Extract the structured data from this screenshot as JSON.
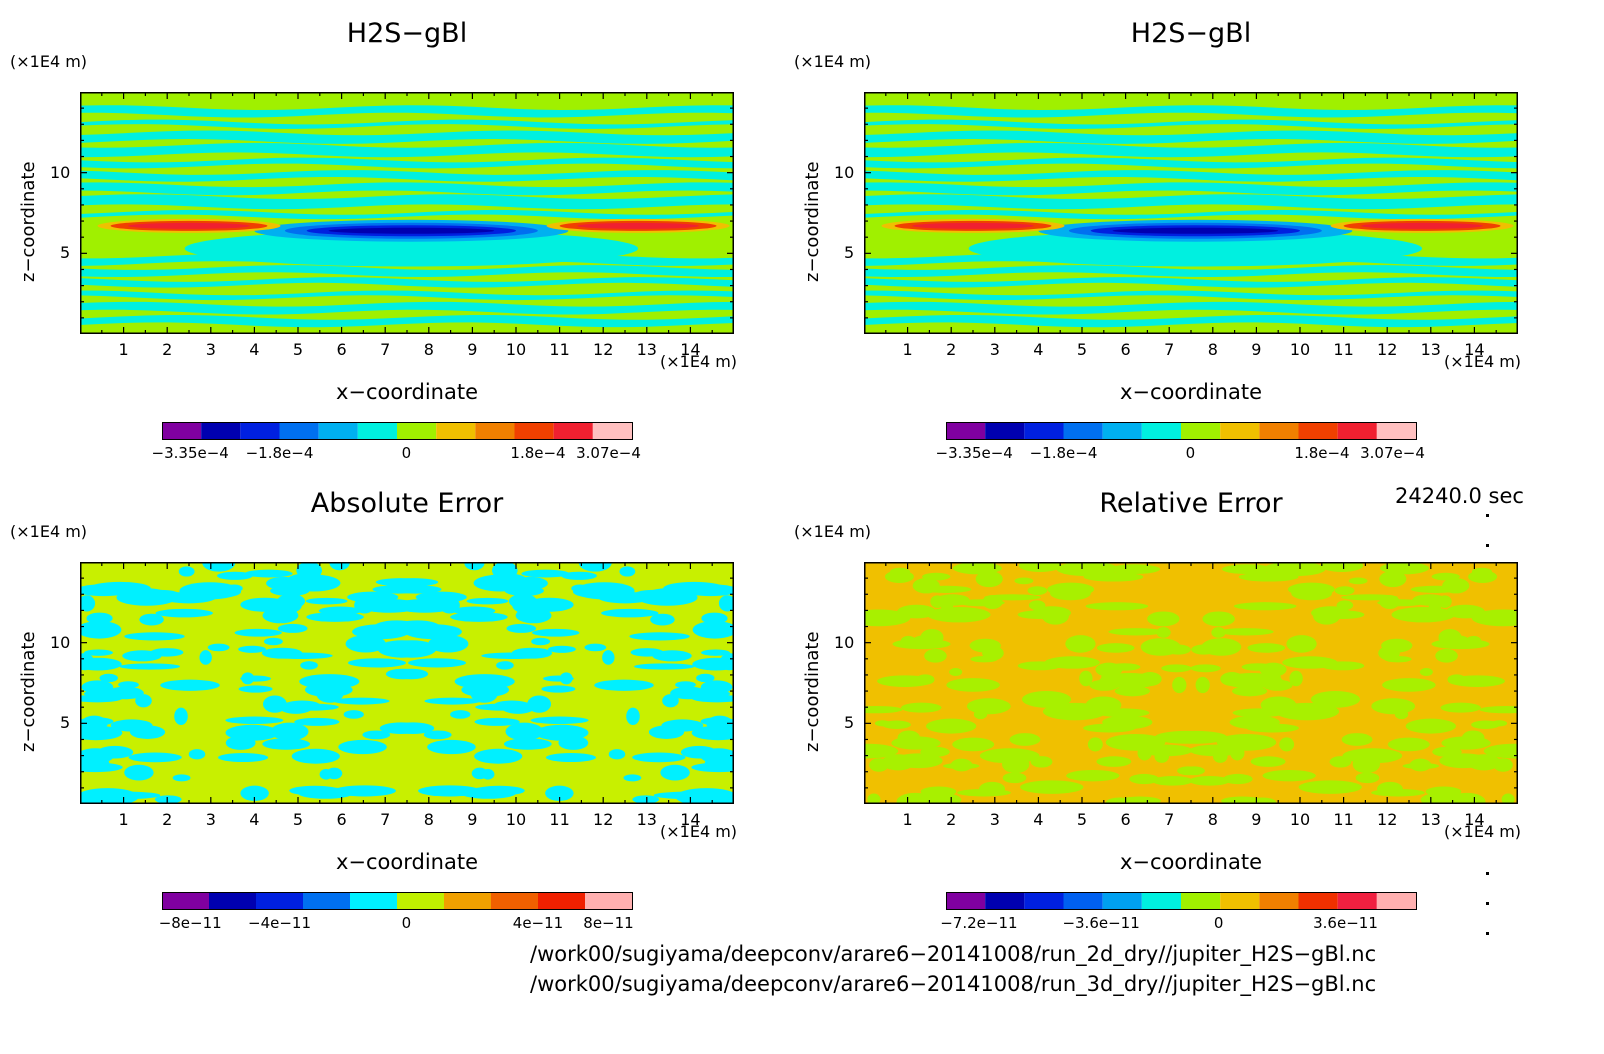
{
  "panels": [
    {
      "title": "H2S−gBl",
      "z_unit": "(×1E4 m)",
      "x_unit": "(×1E4 m)",
      "xlabel": "x−coordinate",
      "ylabel": "z−coordinate",
      "colorbar": {
        "labels": [
          "−3.35e−4",
          "−1.8e−4",
          "0",
          "1.8e−4",
          "3.07e−4"
        ],
        "colors": [
          "#8000a0",
          "#0000b0",
          "#0020e0",
          "#0070f0",
          "#00b0f0",
          "#00f0e0",
          "#a0f000",
          "#f0c000",
          "#f08000",
          "#f04000",
          "#f02030",
          "#ffc0c0"
        ]
      },
      "style": "field"
    },
    {
      "title": "H2S−gBl",
      "z_unit": "(×1E4 m)",
      "x_unit": "(×1E4 m)",
      "xlabel": "x−coordinate",
      "ylabel": "z−coordinate",
      "colorbar": {
        "labels": [
          "−3.35e−4",
          "−1.8e−4",
          "0",
          "1.8e−4",
          "3.07e−4"
        ],
        "colors": [
          "#8000a0",
          "#0000b0",
          "#0020e0",
          "#0070f0",
          "#00b0f0",
          "#00f0e0",
          "#a0f000",
          "#f0c000",
          "#f08000",
          "#f04000",
          "#f02030",
          "#ffc0c0"
        ]
      },
      "style": "field"
    },
    {
      "title": "Absolute Error",
      "z_unit": "(×1E4 m)",
      "x_unit": "(×1E4 m)",
      "xlabel": "x−coordinate",
      "ylabel": "z−coordinate",
      "colorbar": {
        "labels": [
          "−8e−11",
          "−4e−11",
          "0",
          "4e−11",
          "8e−11"
        ],
        "colors": [
          "#8000a0",
          "#0000b0",
          "#0020e0",
          "#0070f0",
          "#00f0ff",
          "#c0f000",
          "#f0a000",
          "#f06000",
          "#f02000",
          "#ffb0b0"
        ]
      },
      "style": "abs"
    },
    {
      "title": "Relative Error",
      "z_unit": "(×1E4 m)",
      "x_unit": "(×1E4 m)",
      "xlabel": "x−coordinate",
      "ylabel": "z−coordinate",
      "colorbar": {
        "labels": [
          "−7.2e−11",
          "−3.6e−11",
          "0",
          "3.6e−11"
        ],
        "colors": [
          "#8000a0",
          "#0000b0",
          "#0020e0",
          "#0060f0",
          "#00a0f0",
          "#00f0e0",
          "#a0f000",
          "#f0c000",
          "#f08000",
          "#f03000",
          "#f02040",
          "#ffb0b0"
        ]
      },
      "style": "rel"
    }
  ],
  "time_label": "24240.0 sec",
  "file_paths": [
    "/work00/sugiyama/deepconv/arare6−20141008/run_2d_dry//jupiter_H2S−gBl.nc",
    "/work00/sugiyama/deepconv/arare6−20141008/run_3d_dry//jupiter_H2S−gBl.nc"
  ],
  "chart_data": [
    {
      "type": "heatmap",
      "title": "H2S−gBl",
      "xlabel": "x−coordinate",
      "ylabel": "z−coordinate",
      "xlim": [
        0,
        15
      ],
      "ylim": [
        0,
        15
      ],
      "x_ticks": [
        1,
        2,
        3,
        4,
        5,
        6,
        7,
        8,
        9,
        10,
        11,
        12,
        13,
        14
      ],
      "y_ticks": [
        5,
        10
      ],
      "colorbar_range": [
        -0.000335,
        0.000307
      ],
      "features": [
        {
          "desc": "negative minimum",
          "x": 7.6,
          "z": 6.4,
          "value": -0.000335
        },
        {
          "desc": "positive maximum",
          "x": 2.5,
          "z": 6.7,
          "value": 0.000307
        },
        {
          "desc": "positive maximum",
          "x": 12.8,
          "z": 6.7,
          "value": 0.000307
        }
      ]
    },
    {
      "type": "heatmap",
      "title": "H2S−gBl",
      "xlabel": "x−coordinate",
      "ylabel": "z−coordinate",
      "xlim": [
        0,
        15
      ],
      "ylim": [
        0,
        15
      ],
      "x_ticks": [
        1,
        2,
        3,
        4,
        5,
        6,
        7,
        8,
        9,
        10,
        11,
        12,
        13,
        14
      ],
      "y_ticks": [
        5,
        10
      ],
      "colorbar_range": [
        -0.000335,
        0.000307
      ]
    },
    {
      "type": "heatmap",
      "title": "Absolute Error",
      "xlabel": "x−coordinate",
      "ylabel": "z−coordinate",
      "xlim": [
        0,
        15
      ],
      "ylim": [
        0,
        15
      ],
      "x_ticks": [
        1,
        2,
        3,
        4,
        5,
        6,
        7,
        8,
        9,
        10,
        11,
        12,
        13,
        14
      ],
      "y_ticks": [
        5,
        10
      ],
      "colorbar_ticks": [
        -8e-11,
        -4e-11,
        0,
        4e-11,
        8e-11
      ]
    },
    {
      "type": "heatmap",
      "title": "Relative Error",
      "xlabel": "x−coordinate",
      "ylabel": "z−coordinate",
      "xlim": [
        0,
        15
      ],
      "ylim": [
        0,
        15
      ],
      "x_ticks": [
        1,
        2,
        3,
        4,
        5,
        6,
        7,
        8,
        9,
        10,
        11,
        12,
        13,
        14
      ],
      "y_ticks": [
        5,
        10
      ],
      "colorbar_ticks": [
        -7.2e-11,
        -3.6e-11,
        0,
        3.6e-11
      ]
    }
  ]
}
